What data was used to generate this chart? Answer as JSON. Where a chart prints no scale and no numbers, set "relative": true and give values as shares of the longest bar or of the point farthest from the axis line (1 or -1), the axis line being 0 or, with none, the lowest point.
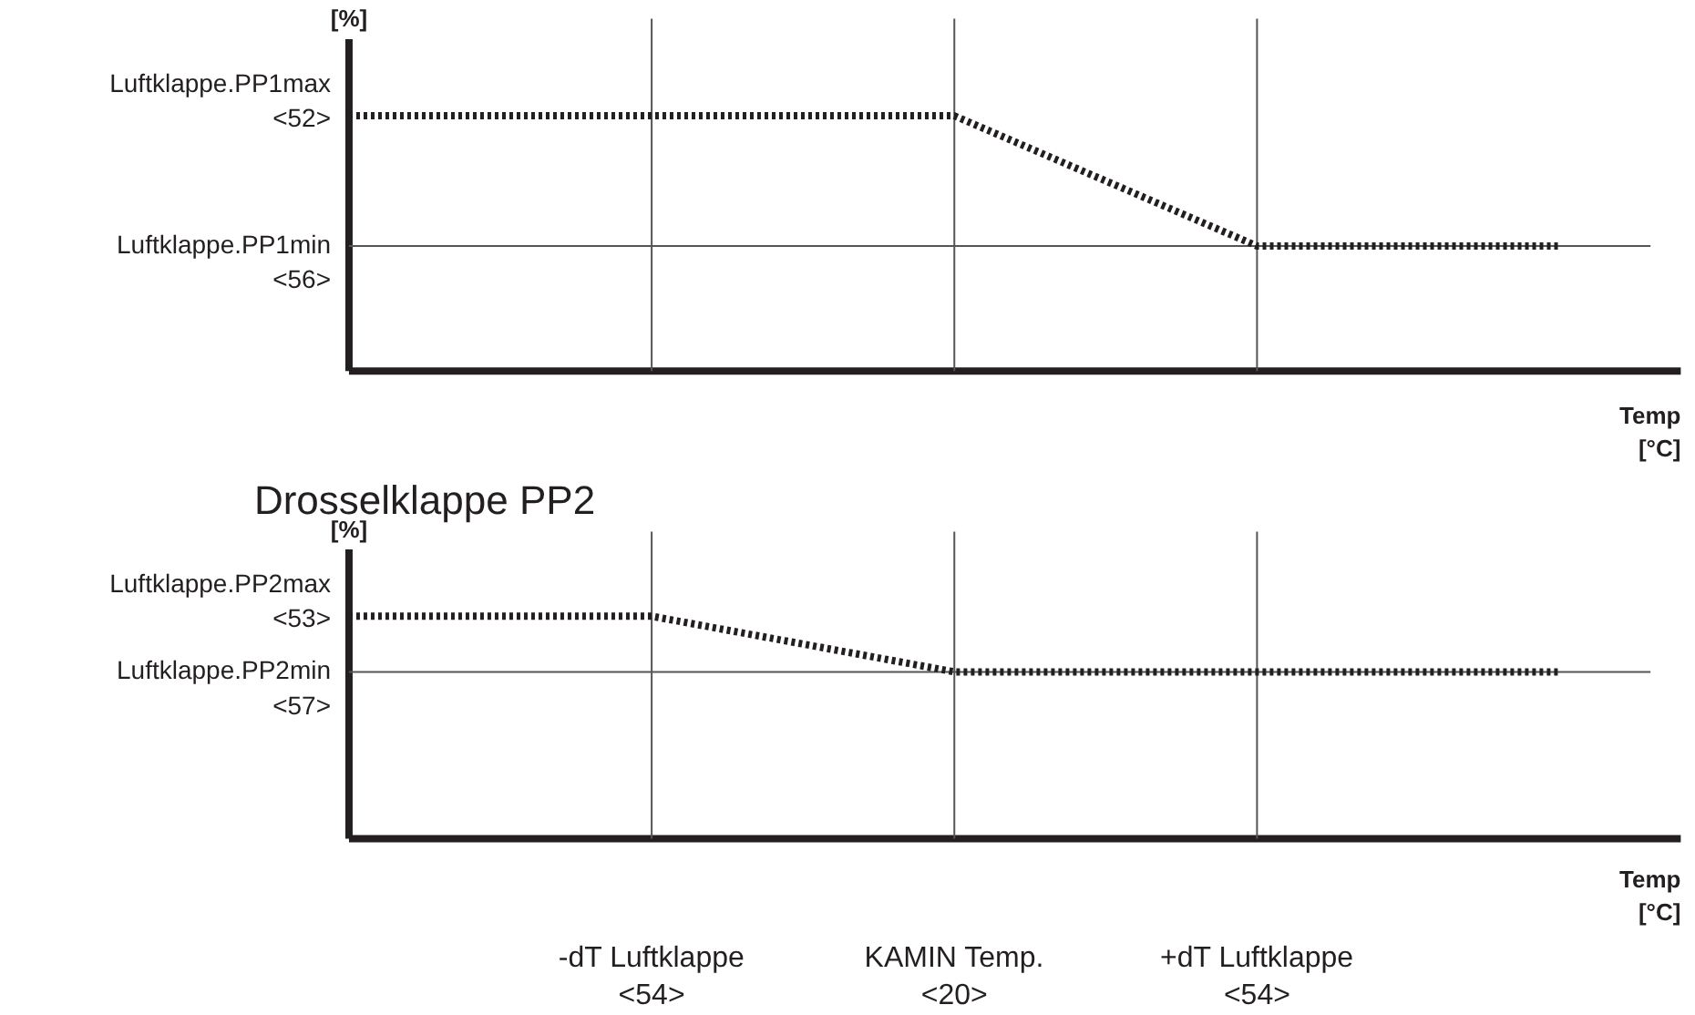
{
  "chart_data": [
    {
      "type": "line",
      "relative": true,
      "ylabel": "[%]",
      "xlabel": "Temp\n[°C]",
      "categories": [
        null,
        "-dT Luftklappe\n<54>",
        "KAMIN Temp.\n<20>",
        "+dT Luftklappe\n<54>",
        null
      ],
      "tick_labels": false,
      "line_style": "dotted",
      "series": [
        {
          "color": "#231f20",
          "values": [
            1,
            1,
            1,
            0.49,
            0.49
          ]
        }
      ],
      "ref_lines": [
        {
          "axis": "y",
          "value": 0.49,
          "color": "#555555",
          "label": "Luftklappe.PP1min\n<56>"
        },
        {
          "axis": "x",
          "value": "-dT Luftklappe\n<54>",
          "color": "#555555"
        },
        {
          "axis": "x",
          "value": "KAMIN Temp.\n<20>",
          "color": "#555555"
        },
        {
          "axis": "x",
          "value": "+dT Luftklappe\n<54>",
          "color": "#555555"
        }
      ],
      "annotations": [
        "Luftklappe.PP1max\n<52>"
      ]
    },
    {
      "type": "line",
      "relative": true,
      "title": "Drosselklappe PP2",
      "ylabel": "[%]",
      "xlabel": "Temp\n[°C]",
      "categories": [
        null,
        "-dT Luftklappe\n<54>",
        "KAMIN Temp.\n<20>",
        "+dT Luftklappe\n<54>",
        null
      ],
      "tick_labels": "x",
      "line_style": "dotted",
      "series": [
        {
          "color": "#231f20",
          "values": [
            1,
            1,
            0.75,
            0.75,
            0.75
          ]
        }
      ],
      "ref_lines": [
        {
          "axis": "y",
          "value": 0.75,
          "color": "#555555",
          "label": "Luftklappe.PP2min\n<57>"
        },
        {
          "axis": "x",
          "value": "-dT Luftklappe\n<54>",
          "color": "#555555"
        },
        {
          "axis": "x",
          "value": "KAMIN Temp.\n<20>",
          "color": "#555555"
        },
        {
          "axis": "x",
          "value": "+dT Luftklappe\n<54>",
          "color": "#555555"
        }
      ],
      "annotations": [
        "Luftklappe.PP2max\n<53>"
      ]
    }
  ]
}
